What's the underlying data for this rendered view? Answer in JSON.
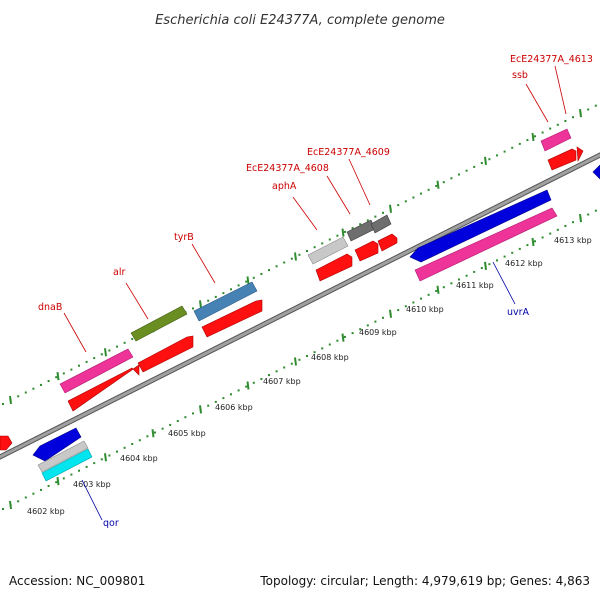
{
  "title": "Escherichia coli E24377A, complete genome",
  "footer": {
    "accession": "Accession: NC_009801",
    "summary": "Topology: circular; Length: 4,979,619 bp; Genes: 4,863"
  },
  "colors": {
    "backbone": "#8a8a8a",
    "tick_dot": "#2e8b2e",
    "label_red": "#cc0000",
    "label_blue": "#0000aa"
  },
  "scale_ticks": [
    {
      "label": "4602 kbp"
    },
    {
      "label": "4603 kbp"
    },
    {
      "label": "4604 kbp"
    },
    {
      "label": "4605 kbp"
    },
    {
      "label": "4606 kbp"
    },
    {
      "label": "4607 kbp"
    },
    {
      "label": "4608 kbp"
    },
    {
      "label": "4609 kbp"
    },
    {
      "label": "4610 kbp"
    },
    {
      "label": "4611 kbp"
    },
    {
      "label": "4612 kbp"
    },
    {
      "label": "4613 kbp"
    }
  ],
  "features": [
    {
      "name": "dnaB",
      "strand": "forward",
      "color": "#ee3399"
    },
    {
      "name": "alr",
      "strand": "forward",
      "color": "#6b8e23"
    },
    {
      "name": "tyrB",
      "strand": "forward",
      "color": "#4682b4"
    },
    {
      "name": "aphA",
      "strand": "forward",
      "color": "#c8c8c8"
    },
    {
      "name": "EcE24377A_4608",
      "strand": "forward",
      "color": "#6e6e6e"
    },
    {
      "name": "EcE24377A_4609",
      "strand": "forward",
      "color": "#6e6e6e"
    },
    {
      "name": "ssb",
      "strand": "forward",
      "color": "#ee3399"
    },
    {
      "name": "EcE24377A_4613",
      "strand": "forward",
      "color": "#ee3399"
    },
    {
      "name": "uvrA",
      "strand": "reverse",
      "color": "#0000dd"
    },
    {
      "name": "qor",
      "strand": "reverse",
      "color": "#00e5ee"
    }
  ],
  "cds_color": "#ff0000",
  "reverse_cds_color": "#0000ff",
  "reverse_rna_color": "#ee3399"
}
